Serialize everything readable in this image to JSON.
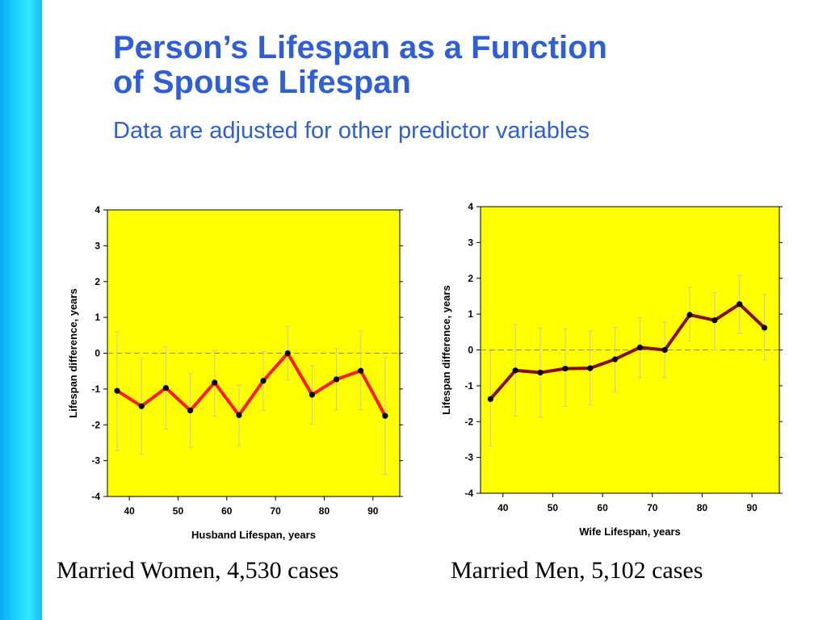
{
  "slide": {
    "title_line1": "Person’s Lifespan as  a  Function",
    "title_line2": "of  Spouse  Lifespan",
    "subtitle": "Data are adjusted for other predictor variables",
    "caption_left": "Married Women, 4,530 cases",
    "caption_right": "Married Men, 5,102 cases",
    "colors": {
      "title": "#2f5fd8",
      "sidebar": "#1ad0ff",
      "plot_background": "#ffff00"
    }
  },
  "chart_data": [
    {
      "type": "line",
      "xlabel": "Husband Lifespan, years",
      "ylabel": "Lifespan difference, years",
      "xlim": [
        35.5,
        95.5
      ],
      "ylim": [
        -4,
        4
      ],
      "xticks": [
        40,
        50,
        60,
        70,
        80,
        90
      ],
      "yticks": [
        4,
        3,
        2,
        1,
        0,
        -1,
        -2,
        -3,
        -4
      ],
      "reference_line": 0,
      "line_color": "#ff1a1a",
      "x": [
        37.5,
        42.5,
        47.5,
        52.5,
        57.5,
        62.5,
        67.5,
        72.5,
        77.5,
        82.5,
        87.5,
        92.5
      ],
      "y": [
        -1.05,
        -1.48,
        -0.97,
        -1.6,
        -0.82,
        -1.73,
        -0.77,
        0.0,
        -1.16,
        -0.73,
        -0.49,
        -1.75
      ],
      "err_low": [
        -2.72,
        -2.82,
        -2.12,
        -2.63,
        -1.76,
        -2.58,
        -1.6,
        -0.75,
        -1.98,
        -1.58,
        -1.58,
        -3.38
      ],
      "err_high": [
        0.6,
        -0.15,
        0.17,
        -0.56,
        0.07,
        -0.89,
        0.05,
        0.75,
        -0.35,
        0.13,
        0.62,
        -0.12
      ]
    },
    {
      "type": "line",
      "xlabel": "Wife Lifespan, years",
      "ylabel": "Lifespan difference, years",
      "xlim": [
        35.5,
        95.5
      ],
      "ylim": [
        -4,
        4
      ],
      "xticks": [
        40,
        50,
        60,
        70,
        80,
        90
      ],
      "yticks": [
        4,
        3,
        2,
        1,
        0,
        -1,
        -2,
        -3,
        -4
      ],
      "reference_line": 0,
      "line_color": "#8b0a0a",
      "x": [
        37.5,
        42.5,
        47.5,
        52.5,
        57.5,
        62.5,
        67.5,
        72.5,
        77.5,
        82.5,
        87.5,
        92.5
      ],
      "y": [
        -1.37,
        -0.57,
        -0.63,
        -0.52,
        -0.51,
        -0.26,
        0.07,
        0.0,
        0.98,
        0.83,
        1.28,
        0.62
      ],
      "err_low": [
        -2.68,
        -1.85,
        -1.88,
        -1.58,
        -1.53,
        -1.16,
        -0.77,
        -0.77,
        0.25,
        0.0,
        0.46,
        -0.28
      ],
      "err_high": [
        -0.02,
        0.71,
        0.61,
        0.58,
        0.53,
        0.63,
        0.9,
        0.77,
        1.75,
        1.6,
        2.08,
        1.55
      ]
    }
  ]
}
